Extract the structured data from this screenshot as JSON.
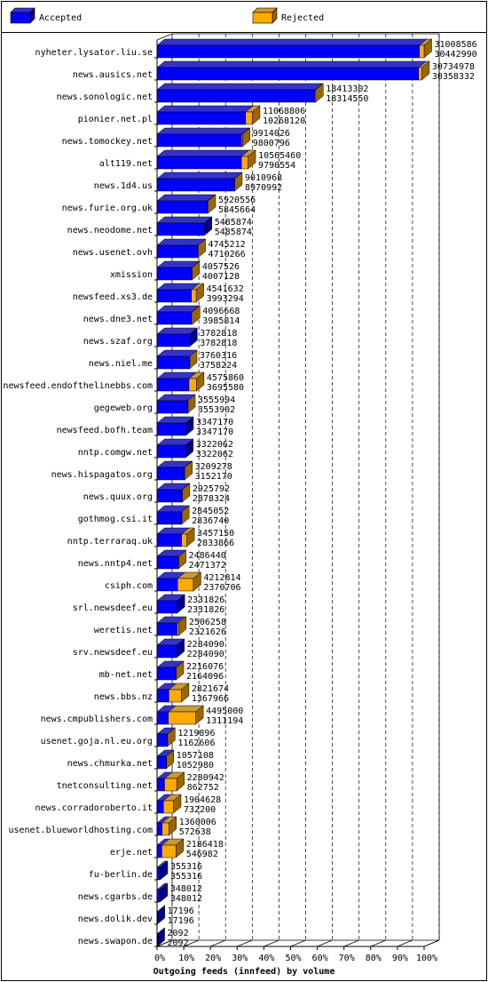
{
  "chart_data": {
    "type": "bar",
    "orientation": "horizontal",
    "style": "3d-overlap",
    "title": "Outgoing feeds (innfeed) by volume",
    "legend": [
      {
        "name": "Accepted",
        "color": "#0000ff"
      },
      {
        "name": "Rejected",
        "color": "#ffaa00"
      }
    ],
    "legend_placement": "top",
    "x_axis": {
      "ticks": [
        "0%",
        "10%",
        "20%",
        "30%",
        "40%",
        "50%",
        "60%",
        "70%",
        "80%",
        "90%",
        "100%"
      ],
      "max": 31008586
    },
    "grid": "dashed-vertical",
    "series_values_note": "",
    "rows": [
      {
        "label": "nyheter.lysator.liu.se",
        "offered": 31008586,
        "accepted": 30442990
      },
      {
        "label": "news.ausics.net",
        "offered": 30734978,
        "accepted": 30358332
      },
      {
        "label": "news.sonologic.net",
        "offered": 18413302,
        "accepted": 18314550
      },
      {
        "label": "pionier.net.pl",
        "offered": 11068806,
        "accepted": 10268120
      },
      {
        "label": "news.tomockey.net",
        "offered": 9914026,
        "accepted": 9800796
      },
      {
        "label": "alt119.net",
        "offered": 10565460,
        "accepted": 9790554
      },
      {
        "label": "news.1d4.us",
        "offered": 9010968,
        "accepted": 8970992
      },
      {
        "label": "news.furie.org.uk",
        "offered": 5920556,
        "accepted": 5845664
      },
      {
        "label": "news.neodome.net",
        "offered": 5485874,
        "accepted": 5485874
      },
      {
        "label": "news.usenet.ovh",
        "offered": 4745212,
        "accepted": 4710266
      },
      {
        "label": "xmission",
        "offered": 4057526,
        "accepted": 4007128
      },
      {
        "label": "newsfeed.xs3.de",
        "offered": 4541632,
        "accepted": 3993294
      },
      {
        "label": "news.dne3.net",
        "offered": 4096668,
        "accepted": 3985814
      },
      {
        "label": "news.szaf.org",
        "offered": 3782818,
        "accepted": 3782818
      },
      {
        "label": "news.niel.me",
        "offered": 3760316,
        "accepted": 3758224
      },
      {
        "label": "newsfeed.endofthelinebbs.com",
        "offered": 4575860,
        "accepted": 3695580
      },
      {
        "label": "gegeweb.org",
        "offered": 3555994,
        "accepted": 3553902
      },
      {
        "label": "newsfeed.bofh.team",
        "offered": 3347170,
        "accepted": 3347170
      },
      {
        "label": "nntp.comgw.net",
        "offered": 3322062,
        "accepted": 3322062
      },
      {
        "label": "news.hispagatos.org",
        "offered": 3209278,
        "accepted": 3152170
      },
      {
        "label": "news.quux.org",
        "offered": 2925792,
        "accepted": 2878324
      },
      {
        "label": "gothmog.csi.it",
        "offered": 2845052,
        "accepted": 2836740
      },
      {
        "label": "nntp.terraraq.uk",
        "offered": 3457150,
        "accepted": 2833866
      },
      {
        "label": "news.nntp4.net",
        "offered": 2486440,
        "accepted": 2471372
      },
      {
        "label": "csiph.com",
        "offered": 4212814,
        "accepted": 2370706
      },
      {
        "label": "srl.newsdeef.eu",
        "offered": 2331826,
        "accepted": 2331826
      },
      {
        "label": "weretis.net",
        "offered": 2506258,
        "accepted": 2321626
      },
      {
        "label": "srv.newsdeef.eu",
        "offered": 2284090,
        "accepted": 2284090
      },
      {
        "label": "mb-net.net",
        "offered": 2216076,
        "accepted": 2164096
      },
      {
        "label": "news.bbs.nz",
        "offered": 2821674,
        "accepted": 1367966
      },
      {
        "label": "news.cmpublishers.com",
        "offered": 4495000,
        "accepted": 1311194
      },
      {
        "label": "usenet.goja.nl.eu.org",
        "offered": 1219896,
        "accepted": 1162606
      },
      {
        "label": "news.chmurka.net",
        "offered": 1057108,
        "accepted": 1052980
      },
      {
        "label": "tnetconsulting.net",
        "offered": 2280942,
        "accepted": 862752
      },
      {
        "label": "news.corradoroberto.it",
        "offered": 1904628,
        "accepted": 732200
      },
      {
        "label": "usenet.blueworldhosting.com",
        "offered": 1360006,
        "accepted": 572638
      },
      {
        "label": "erje.net",
        "offered": 2186418,
        "accepted": 546982
      },
      {
        "label": "fu-berlin.de",
        "offered": 355316,
        "accepted": 355316
      },
      {
        "label": "news.cgarbs.de",
        "offered": 348012,
        "accepted": 348012
      },
      {
        "label": "news.dolik.dev",
        "offered": 17196,
        "accepted": 17196
      },
      {
        "label": "news.swapon.de",
        "offered": 2092,
        "accepted": 2092
      }
    ]
  },
  "colors": {
    "accepted": "#0000ff",
    "accepted_top": "#3333cc",
    "accepted_side": "#000088",
    "rejected": "#ffaa00",
    "rejected_top": "#cc9933",
    "rejected_side": "#996600",
    "frame": "#000000"
  }
}
